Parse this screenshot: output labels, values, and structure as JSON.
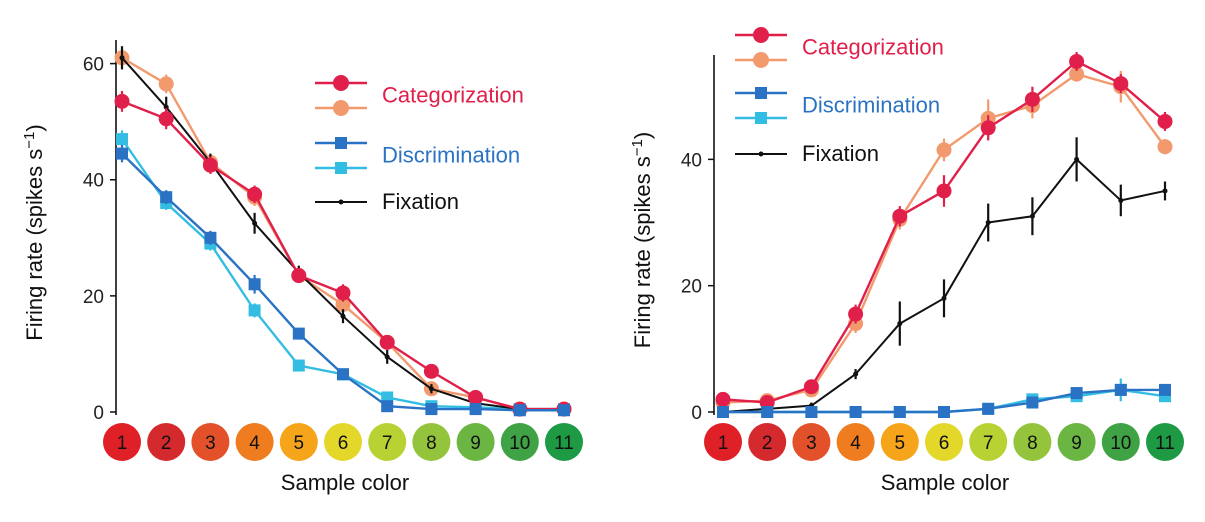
{
  "chart_data": [
    {
      "type": "line",
      "panel": "left",
      "xlabel": "Sample color",
      "ylabel": "Firing rate (spikes s−1)",
      "ylabel_main": "Firing rate (spikes s",
      "ylabel_sup": "−1",
      "ylabel_end": ")",
      "ylim": [
        0,
        62
      ],
      "yticks": [
        0,
        20,
        40,
        60
      ],
      "categories": [
        "1",
        "2",
        "3",
        "4",
        "5",
        "6",
        "7",
        "8",
        "9",
        "10",
        "11"
      ],
      "series": [
        {
          "name": "Categorization",
          "color": "#e0204a",
          "marker": "circle",
          "values": [
            53.5,
            50.5,
            42.5,
            37.5,
            23.5,
            20.5,
            12,
            7,
            2.5,
            0.5,
            0.5
          ],
          "errors": [
            1.8,
            1.8,
            1.5,
            1.5,
            1.2,
            1.5,
            1.2,
            1,
            0.8,
            0.4,
            0.4
          ]
        },
        {
          "name": "Categorization",
          "color": "#f29a6e",
          "marker": "circle",
          "values": [
            61,
            56.5,
            43,
            37,
            23.5,
            18.5,
            12,
            4,
            2.5,
            0.5,
            0.5
          ],
          "errors": [
            1.6,
            1.6,
            1.5,
            1.5,
            1.2,
            1.2,
            1.2,
            1,
            0.8,
            0.4,
            0.4
          ]
        },
        {
          "name": "Discrimination",
          "color": "#2a73c4",
          "marker": "square",
          "values": [
            44.5,
            37,
            30,
            22,
            13.5,
            6.5,
            1,
            0.5,
            0.5,
            0.3,
            0.3
          ],
          "errors": [
            1.5,
            1.2,
            1.2,
            1.6,
            1,
            0.8,
            0.5,
            0.4,
            0.3,
            0.2,
            0.2
          ]
        },
        {
          "name": "Discrimination",
          "color": "#33bde3",
          "marker": "square",
          "values": [
            47,
            36,
            29,
            17.5,
            8,
            6.5,
            2.5,
            1,
            0.8,
            0.5,
            0.5
          ],
          "errors": [
            1.5,
            1.2,
            1.2,
            1.2,
            0.8,
            0.8,
            0.5,
            0.4,
            0.3,
            0.2,
            0.2
          ]
        },
        {
          "name": "Fixation",
          "color": "#111111",
          "marker": "dot",
          "values": [
            61,
            52.5,
            43,
            32.5,
            24,
            16.5,
            9.5,
            4,
            1.5,
            0.5,
            0.5
          ],
          "errors": [
            2,
            1.8,
            1.5,
            1.8,
            1.2,
            1.2,
            1.2,
            0.8,
            0.6,
            0.3,
            0.3
          ]
        }
      ]
    },
    {
      "type": "line",
      "panel": "right",
      "xlabel": "Sample color",
      "ylabel": "Firing rate (spikes s−1)",
      "ylabel_main": "Firing rate (spikes s",
      "ylabel_sup": "−1",
      "ylabel_end": ")",
      "ylim": [
        0,
        57
      ],
      "yticks": [
        0,
        20,
        40
      ],
      "categories": [
        "1",
        "2",
        "3",
        "4",
        "5",
        "6",
        "7",
        "8",
        "9",
        "10",
        "11"
      ],
      "series": [
        {
          "name": "Categorization",
          "color": "#e0204a",
          "marker": "circle",
          "values": [
            2,
            1.5,
            4,
            15.5,
            31,
            35,
            45,
            49.5,
            55.5,
            52,
            46
          ],
          "errors": [
            0.5,
            0.5,
            0.8,
            1.5,
            1.6,
            2.5,
            2,
            2,
            1.5,
            1.5,
            1.5
          ]
        },
        {
          "name": "Categorization",
          "color": "#f29a6e",
          "marker": "circle",
          "values": [
            1.5,
            1.8,
            3.5,
            14,
            30.5,
            41.5,
            46.5,
            48.5,
            53.5,
            51.5,
            42
          ],
          "errors": [
            0.5,
            0.5,
            0.8,
            1.5,
            1.6,
            1.8,
            3,
            2,
            1.2,
            2.5,
            1.2
          ]
        },
        {
          "name": "Discrimination",
          "color": "#2a73c4",
          "marker": "square",
          "values": [
            0,
            0,
            0,
            0,
            0,
            0,
            0.5,
            1.5,
            3,
            3.5,
            3.5
          ],
          "errors": [
            0.2,
            0.2,
            0.2,
            0.2,
            0.2,
            0.3,
            0.5,
            0.6,
            0.8,
            0.8,
            0.6
          ]
        },
        {
          "name": "Discrimination",
          "color": "#33bde3",
          "marker": "square",
          "values": [
            0,
            0,
            0,
            0,
            0,
            0,
            0.5,
            2,
            2.5,
            3.5,
            2.5
          ],
          "errors": [
            0.2,
            0.2,
            0.2,
            0.2,
            0.2,
            0.3,
            0.5,
            0.6,
            0.8,
            1.8,
            0.8
          ]
        },
        {
          "name": "Fixation",
          "color": "#111111",
          "marker": "dot",
          "values": [
            0,
            0.5,
            1,
            6,
            14,
            18,
            30,
            31,
            40,
            33.5,
            35
          ],
          "errors": [
            0.3,
            0.3,
            0.5,
            0.8,
            3.5,
            3,
            3,
            3,
            3.5,
            2.5,
            1.5
          ]
        }
      ]
    }
  ],
  "legend": [
    {
      "label": "Categorization",
      "color": "#e0204a",
      "marker": "circle"
    },
    {
      "label": "",
      "color": "#f29a6e",
      "marker": "circle"
    },
    {
      "label": "Discrimination",
      "color": "#2a73c4",
      "marker": "square"
    },
    {
      "label": "",
      "color": "#33bde3",
      "marker": "square"
    },
    {
      "label": "Fixation",
      "color": "#111111",
      "marker": "dot"
    }
  ],
  "sample_colors": [
    {
      "label": "1",
      "color": "#e02027"
    },
    {
      "label": "2",
      "color": "#d42a2e"
    },
    {
      "label": "3",
      "color": "#e2512a"
    },
    {
      "label": "4",
      "color": "#ef7c1e"
    },
    {
      "label": "5",
      "color": "#f6a41a"
    },
    {
      "label": "6",
      "color": "#e3d82a"
    },
    {
      "label": "7",
      "color": "#b8d233"
    },
    {
      "label": "8",
      "color": "#94c43c"
    },
    {
      "label": "9",
      "color": "#6bb643"
    },
    {
      "label": "10",
      "color": "#3fa345"
    },
    {
      "label": "11",
      "color": "#1e9a44"
    }
  ]
}
